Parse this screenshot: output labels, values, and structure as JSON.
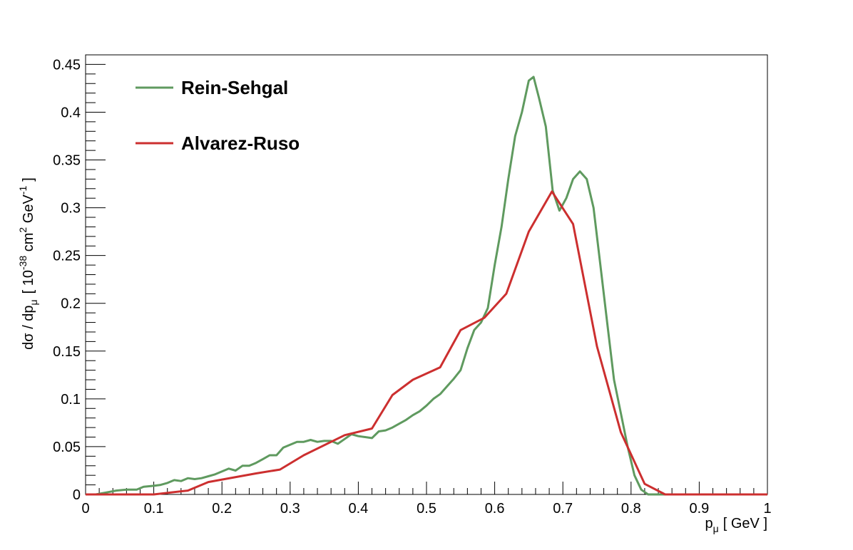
{
  "chart_data": {
    "type": "line",
    "xlabel": {
      "base": "p",
      "sub": "μ",
      "unit": "[ GeV ]"
    },
    "ylabel": {
      "main": "dσ / dp",
      "sub": "μ",
      "pre": "[ 10",
      "exp1": "-38",
      "mid": " cm",
      "exp2": "2",
      "post": " GeV",
      "exp3": "-1",
      "close": "]"
    },
    "xlim": [
      0,
      1
    ],
    "ylim": [
      0,
      0.46
    ],
    "x_ticks": [
      {
        "v": 0,
        "label": "0"
      },
      {
        "v": 0.1,
        "label": "0.1"
      },
      {
        "v": 0.2,
        "label": "0.2"
      },
      {
        "v": 0.3,
        "label": "0.3"
      },
      {
        "v": 0.4,
        "label": "0.4"
      },
      {
        "v": 0.5,
        "label": "0.5"
      },
      {
        "v": 0.6,
        "label": "0.6"
      },
      {
        "v": 0.7,
        "label": "0.7"
      },
      {
        "v": 0.8,
        "label": "0.8"
      },
      {
        "v": 0.9,
        "label": "0.9"
      },
      {
        "v": 1,
        "label": "1"
      }
    ],
    "y_ticks": [
      {
        "v": 0,
        "label": "0"
      },
      {
        "v": 0.05,
        "label": "0.05"
      },
      {
        "v": 0.1,
        "label": "0.1"
      },
      {
        "v": 0.15,
        "label": "0.15"
      },
      {
        "v": 0.2,
        "label": "0.2"
      },
      {
        "v": 0.25,
        "label": "0.25"
      },
      {
        "v": 0.3,
        "label": "0.3"
      },
      {
        "v": 0.35,
        "label": "0.35"
      },
      {
        "v": 0.4,
        "label": "0.4"
      },
      {
        "v": 0.45,
        "label": "0.45"
      }
    ],
    "legend_position": "top-left",
    "grid": false,
    "series": [
      {
        "name": "Rein-Sehgal",
        "color": "#5f9a5f",
        "points": [
          [
            0.015,
            0.0
          ],
          [
            0.03,
            0.002
          ],
          [
            0.045,
            0.004
          ],
          [
            0.06,
            0.005
          ],
          [
            0.075,
            0.005
          ],
          [
            0.085,
            0.008
          ],
          [
            0.1,
            0.009
          ],
          [
            0.11,
            0.01
          ],
          [
            0.12,
            0.012
          ],
          [
            0.13,
            0.015
          ],
          [
            0.14,
            0.014
          ],
          [
            0.15,
            0.017
          ],
          [
            0.16,
            0.016
          ],
          [
            0.17,
            0.017
          ],
          [
            0.18,
            0.019
          ],
          [
            0.19,
            0.021
          ],
          [
            0.2,
            0.024
          ],
          [
            0.21,
            0.027
          ],
          [
            0.22,
            0.025
          ],
          [
            0.23,
            0.03
          ],
          [
            0.24,
            0.03
          ],
          [
            0.25,
            0.033
          ],
          [
            0.26,
            0.037
          ],
          [
            0.27,
            0.041
          ],
          [
            0.28,
            0.041
          ],
          [
            0.29,
            0.049
          ],
          [
            0.3,
            0.052
          ],
          [
            0.31,
            0.055
          ],
          [
            0.32,
            0.055
          ],
          [
            0.33,
            0.057
          ],
          [
            0.34,
            0.055
          ],
          [
            0.35,
            0.056
          ],
          [
            0.36,
            0.056
          ],
          [
            0.37,
            0.053
          ],
          [
            0.38,
            0.058
          ],
          [
            0.39,
            0.063
          ],
          [
            0.4,
            0.061
          ],
          [
            0.41,
            0.06
          ],
          [
            0.42,
            0.059
          ],
          [
            0.43,
            0.066
          ],
          [
            0.44,
            0.067
          ],
          [
            0.45,
            0.07
          ],
          [
            0.46,
            0.074
          ],
          [
            0.47,
            0.078
          ],
          [
            0.48,
            0.083
          ],
          [
            0.49,
            0.087
          ],
          [
            0.5,
            0.093
          ],
          [
            0.51,
            0.1
          ],
          [
            0.52,
            0.105
          ],
          [
            0.53,
            0.113
          ],
          [
            0.54,
            0.121
          ],
          [
            0.55,
            0.13
          ],
          [
            0.56,
            0.153
          ],
          [
            0.57,
            0.172
          ],
          [
            0.58,
            0.18
          ],
          [
            0.59,
            0.195
          ],
          [
            0.6,
            0.24
          ],
          [
            0.61,
            0.28
          ],
          [
            0.62,
            0.33
          ],
          [
            0.63,
            0.375
          ],
          [
            0.64,
            0.4
          ],
          [
            0.65,
            0.433
          ],
          [
            0.657,
            0.437
          ],
          [
            0.665,
            0.415
          ],
          [
            0.675,
            0.385
          ],
          [
            0.685,
            0.318
          ],
          [
            0.695,
            0.297
          ],
          [
            0.705,
            0.31
          ],
          [
            0.715,
            0.33
          ],
          [
            0.725,
            0.338
          ],
          [
            0.735,
            0.33
          ],
          [
            0.745,
            0.3
          ],
          [
            0.755,
            0.24
          ],
          [
            0.765,
            0.18
          ],
          [
            0.775,
            0.12
          ],
          [
            0.785,
            0.085
          ],
          [
            0.795,
            0.05
          ],
          [
            0.805,
            0.02
          ],
          [
            0.815,
            0.005
          ],
          [
            0.825,
            0.0
          ],
          [
            0.84,
            0.0
          ],
          [
            1.0,
            0.0
          ]
        ]
      },
      {
        "name": "Alvarez-Ruso",
        "color": "#cc2f2f",
        "points": [
          [
            0.0,
            0.0
          ],
          [
            0.04,
            0.0
          ],
          [
            0.07,
            0.0
          ],
          [
            0.1,
            0.0
          ],
          [
            0.15,
            0.004
          ],
          [
            0.18,
            0.013
          ],
          [
            0.25,
            0.022
          ],
          [
            0.285,
            0.026
          ],
          [
            0.32,
            0.041
          ],
          [
            0.38,
            0.062
          ],
          [
            0.42,
            0.069
          ],
          [
            0.45,
            0.104
          ],
          [
            0.48,
            0.12
          ],
          [
            0.52,
            0.133
          ],
          [
            0.55,
            0.172
          ],
          [
            0.585,
            0.185
          ],
          [
            0.617,
            0.21
          ],
          [
            0.65,
            0.275
          ],
          [
            0.684,
            0.317
          ],
          [
            0.715,
            0.283
          ],
          [
            0.75,
            0.155
          ],
          [
            0.785,
            0.065
          ],
          [
            0.82,
            0.011
          ],
          [
            0.85,
            0.0
          ],
          [
            0.9,
            0.0
          ],
          [
            1.0,
            0.0
          ]
        ]
      }
    ]
  }
}
